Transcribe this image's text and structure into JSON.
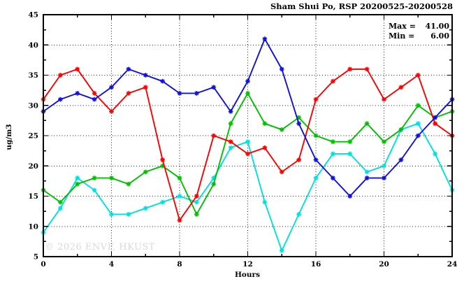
{
  "annotations": {
    "max_label": "Max =",
    "max_value": "41.00",
    "min_label": "Min =",
    "min_value": "6.00"
  },
  "watermark": "© 2026 ENVF, HKUST",
  "chart_data": {
    "type": "line",
    "title": "Sham Shui Po, RSP 20200525-20200528",
    "xlabel": "Hours",
    "ylabel": "ug/m3",
    "xlim": [
      0,
      24
    ],
    "ylim": [
      5,
      45
    ],
    "x_major_ticks": [
      0,
      4,
      8,
      12,
      16,
      20,
      24
    ],
    "x_major_tick_labels": [
      "0",
      "4",
      "8",
      "12",
      "16",
      "20",
      "24"
    ],
    "x_minor_ticks": [
      2,
      6,
      10,
      14,
      18,
      22
    ],
    "y_major_ticks": [
      5,
      10,
      15,
      20,
      25,
      30,
      35,
      40,
      45
    ],
    "y_major_tick_labels": [
      "5",
      "10",
      "15",
      "20",
      "25",
      "30",
      "35",
      "40",
      "45"
    ],
    "y_minor_ticks": [
      7.5,
      12.5,
      17.5,
      22.5,
      27.5,
      32.5,
      37.5,
      42.5
    ],
    "grid": "dotted-at-major-ticks",
    "legend": "none",
    "max": 41.0,
    "min": 6.0,
    "x": [
      0,
      1,
      2,
      3,
      4,
      5,
      6,
      7,
      8,
      9,
      10,
      11,
      12,
      13,
      14,
      15,
      16,
      17,
      18,
      19,
      20,
      21,
      22,
      23,
      24
    ],
    "series": [
      {
        "name": "cyan-line",
        "color": "#00e0e0",
        "values": [
          9,
          13,
          18,
          16,
          12,
          12,
          13,
          14,
          15,
          14,
          18,
          23,
          24,
          14,
          6,
          12,
          18,
          22,
          22,
          19,
          20,
          26,
          27,
          22,
          16
        ]
      },
      {
        "name": "green-line",
        "color": "#00c000",
        "values": [
          16,
          14,
          17,
          18,
          18,
          17,
          19,
          20,
          18,
          12,
          17,
          27,
          32,
          27,
          26,
          28,
          25,
          24,
          24,
          27,
          24,
          26,
          30,
          28,
          29
        ]
      },
      {
        "name": "red-line",
        "color": "#ff0000",
        "values": [
          31,
          35,
          36,
          32,
          29,
          32,
          33,
          21,
          11,
          15,
          25,
          24,
          22,
          23,
          19,
          21,
          31,
          34,
          36,
          36,
          31,
          33,
          35,
          27,
          25
        ]
      },
      {
        "name": "blue-line",
        "color": "#0f0fe0",
        "values": [
          29,
          31,
          32,
          31,
          33,
          36,
          35,
          34,
          32,
          32,
          33,
          29,
          34,
          41,
          36,
          27,
          21,
          18,
          15,
          18,
          18,
          21,
          25,
          28,
          31
        ]
      }
    ]
  }
}
